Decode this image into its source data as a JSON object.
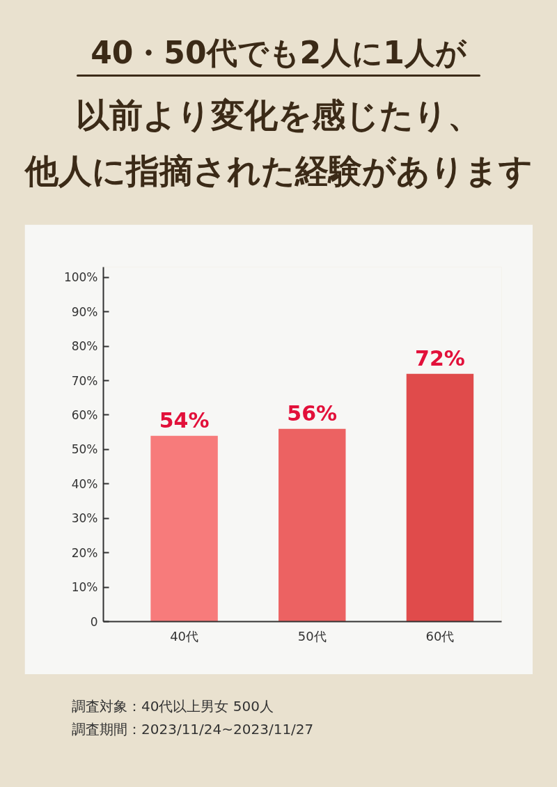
{
  "chart_data": {
    "type": "bar",
    "title": "40・50代でも2人に1人が",
    "subtitle": "以前より変化を感じたり、他人に指摘された経験があります",
    "categories": [
      "40代",
      "50代",
      "60代"
    ],
    "values": [
      54,
      56,
      72
    ],
    "colors": [
      "#f77b7b",
      "#ec6262",
      "#e04b4b"
    ],
    "value_labels": [
      "54%",
      "56%",
      "72%"
    ],
    "ylim": [
      0,
      103
    ],
    "yticks": [
      {
        "value": 0,
        "label": "0"
      },
      {
        "value": 10,
        "label": "10%"
      },
      {
        "value": 20,
        "label": "20%"
      },
      {
        "value": 30,
        "label": "30%"
      },
      {
        "value": 40,
        "label": "40%"
      },
      {
        "value": 50,
        "label": "50%"
      },
      {
        "value": 60,
        "label": "60%"
      },
      {
        "value": 70,
        "label": "70%"
      },
      {
        "value": 80,
        "label": "80%"
      },
      {
        "value": 90,
        "label": "90%"
      },
      {
        "value": 100,
        "label": "100%"
      }
    ],
    "annotations": [
      "調査対象：40代以上男女 500人",
      "調査期間：2023/11/24~2023/11/27"
    ]
  }
}
